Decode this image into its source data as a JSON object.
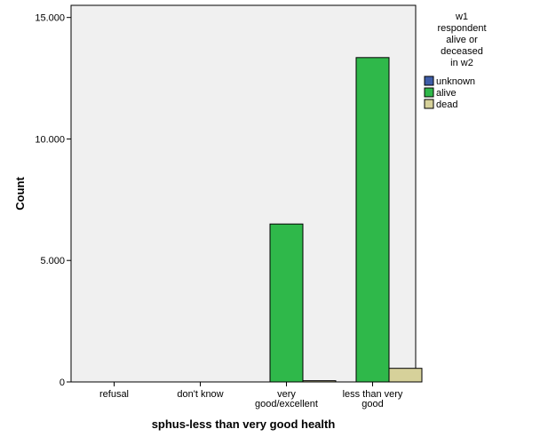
{
  "chart_data": {
    "type": "bar",
    "title": "",
    "xlabel": "sphus-less than very good health",
    "ylabel": "Count",
    "ylim": [
      0,
      15500
    ],
    "yticks": [
      {
        "value": 0,
        "label": "0"
      },
      {
        "value": 5000,
        "label": "5.000"
      },
      {
        "value": 10000,
        "label": "10.000"
      },
      {
        "value": 15000,
        "label": "15.000"
      }
    ],
    "grid": false,
    "categories": [
      {
        "label_lines": [
          "refusal"
        ]
      },
      {
        "label_lines": [
          "don't know"
        ]
      },
      {
        "label_lines": [
          "very",
          "good/excellent"
        ]
      },
      {
        "label_lines": [
          "less than very",
          "good"
        ]
      }
    ],
    "legend": {
      "title_lines": [
        "w1",
        "respondent",
        "alive or",
        "deceased",
        "in w2"
      ],
      "position": "right"
    },
    "series": [
      {
        "name": "unknown",
        "color": "#3e5da8",
        "values": [
          0,
          0,
          0,
          0
        ]
      },
      {
        "name": "alive",
        "color": "#2fb84a",
        "values": [
          0,
          0,
          6500,
          13350
        ]
      },
      {
        "name": "dead",
        "color": "#d6d19a",
        "values": [
          0,
          0,
          50,
          560
        ]
      }
    ]
  }
}
